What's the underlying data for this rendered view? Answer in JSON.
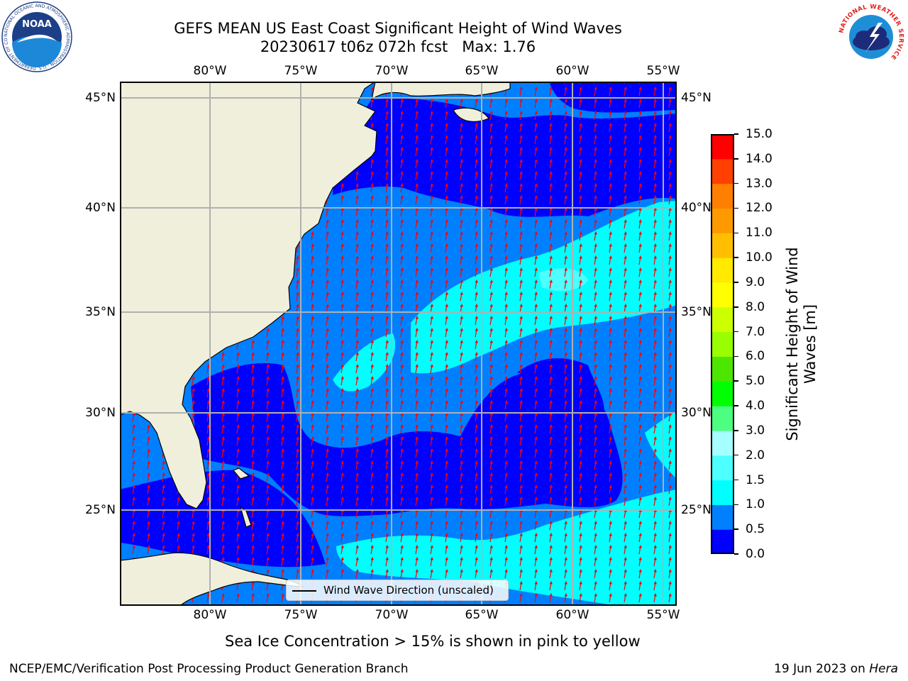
{
  "title": {
    "line1": "GEFS MEAN US East Coast Significant Height of Wind Waves",
    "line2": "20230617 t06z 072h fcst   Max: 1.76"
  },
  "map": {
    "lon_labels": [
      "80°W",
      "75°W",
      "70°W",
      "65°W",
      "60°W",
      "55°W"
    ],
    "lat_labels": [
      "45°N",
      "40°N",
      "35°N",
      "30°N",
      "25°N"
    ],
    "lon_range": [
      "85°W",
      "54.3°W"
    ],
    "lat_range": [
      "20.5°N",
      "45.8°N"
    ],
    "land_color": "#efefdc",
    "grid_color": "#b0b0b0",
    "arrow_color": "#ff0000",
    "legend_label": "Wind Wave Direction (unscaled)"
  },
  "colorbar": {
    "label": "Significant Height of Wind Waves [m]",
    "label_line1": "Significant Height of Wind",
    "label_line2": "Waves [m]",
    "ticks": [
      "0.0",
      "0.5",
      "1.0",
      "1.5",
      "2.0",
      "3.0",
      "4.0",
      "5.0",
      "6.0",
      "7.0",
      "8.0",
      "9.0",
      "10.0",
      "11.0",
      "12.0",
      "13.0",
      "14.0",
      "15.0"
    ],
    "colors": [
      "#0000fe",
      "#0080ff",
      "#00ffff",
      "#4dffff",
      "#a6ffff",
      "#4dff80",
      "#00ff00",
      "#4ce600",
      "#99ff00",
      "#ccff00",
      "#ffff00",
      "#ffea00",
      "#ffbf00",
      "#ff9900",
      "#ff7f00",
      "#ff4000",
      "#ff0000"
    ]
  },
  "logos": {
    "noaa_text": "NOAA",
    "noaa_ring": "NATIONAL OCEANIC AND ATMOSPHERIC ADMINISTRATION · U.S. DEPARTMENT OF COMMERCE",
    "nws_ring": "NATIONAL WEATHER SERVICE"
  },
  "footer": {
    "sea_ice_note": "Sea Ice Concentration > 15% is shown in pink to yellow",
    "credit": "NCEP/EMC/Verification Post Processing Product Generation Branch",
    "date_prefix": "19 Jun 2023 on ",
    "machine": "Hera"
  }
}
